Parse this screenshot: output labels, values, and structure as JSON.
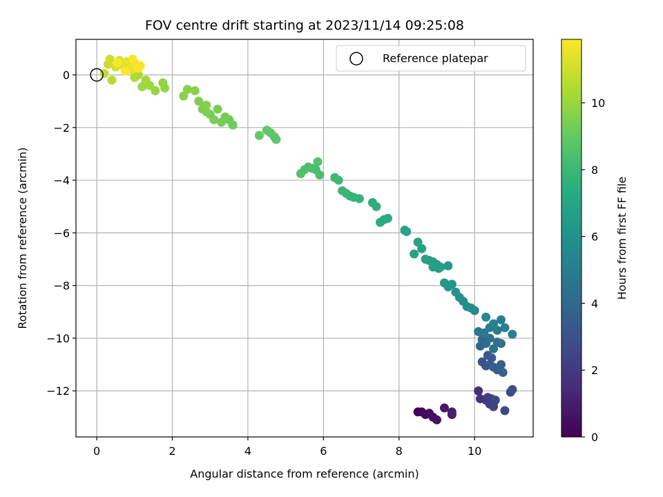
{
  "chart_data": {
    "type": "scatter",
    "title": "FOV centre drift starting at 2023/11/14 09:25:08",
    "xlabel": "Angular distance from reference (arcmin)",
    "ylabel": "Rotation from reference (arcmin)",
    "xlim": [
      -0.55,
      11.55
    ],
    "ylim": [
      -13.75,
      1.35
    ],
    "xticks": [
      0,
      2,
      4,
      6,
      8,
      10
    ],
    "yticks": [
      0,
      -2,
      -4,
      -6,
      -8,
      -10,
      -12
    ],
    "grid": true,
    "legend": {
      "placement": "top-right",
      "label": "Reference platepar"
    },
    "reference_point": {
      "x": 0,
      "y": 0
    },
    "colorbar": {
      "label": "Hours from first FF file",
      "min": 0,
      "max": 11.9,
      "ticks": [
        0,
        2,
        4,
        6,
        8,
        10
      ],
      "colormap": "viridis"
    },
    "points": [
      {
        "x": 8.5,
        "y": -12.8,
        "c": 0.1
      },
      {
        "x": 8.6,
        "y": -12.8,
        "c": 0.2
      },
      {
        "x": 8.7,
        "y": -12.9,
        "c": 0.3
      },
      {
        "x": 8.8,
        "y": -12.85,
        "c": 0.4
      },
      {
        "x": 8.9,
        "y": -13.0,
        "c": 0.5
      },
      {
        "x": 9.0,
        "y": -13.1,
        "c": 0.6
      },
      {
        "x": 9.2,
        "y": -12.65,
        "c": 0.8
      },
      {
        "x": 9.4,
        "y": -12.8,
        "c": 0.9
      },
      {
        "x": 9.4,
        "y": -12.9,
        "c": 1.0
      },
      {
        "x": 10.1,
        "y": -12.0,
        "c": 1.6
      },
      {
        "x": 10.15,
        "y": -12.3,
        "c": 1.7
      },
      {
        "x": 10.3,
        "y": -12.35,
        "c": 1.9
      },
      {
        "x": 10.35,
        "y": -12.25,
        "c": 2.0
      },
      {
        "x": 10.4,
        "y": -12.5,
        "c": 2.1
      },
      {
        "x": 10.45,
        "y": -12.3,
        "c": 2.2
      },
      {
        "x": 10.5,
        "y": -12.45,
        "c": 2.3
      },
      {
        "x": 10.5,
        "y": -12.6,
        "c": 2.4
      },
      {
        "x": 10.55,
        "y": -12.35,
        "c": 2.5
      },
      {
        "x": 10.8,
        "y": -12.75,
        "c": 2.6
      },
      {
        "x": 10.95,
        "y": -12.05,
        "c": 2.7
      },
      {
        "x": 11.0,
        "y": -11.95,
        "c": 2.8
      },
      {
        "x": 10.2,
        "y": -10.9,
        "c": 3.0
      },
      {
        "x": 10.3,
        "y": -11.05,
        "c": 3.1
      },
      {
        "x": 10.35,
        "y": -10.65,
        "c": 3.2
      },
      {
        "x": 10.4,
        "y": -11.0,
        "c": 3.3
      },
      {
        "x": 10.45,
        "y": -10.75,
        "c": 3.4
      },
      {
        "x": 10.5,
        "y": -11.1,
        "c": 3.5
      },
      {
        "x": 10.6,
        "y": -11.2,
        "c": 3.6
      },
      {
        "x": 10.7,
        "y": -11.0,
        "c": 3.7
      },
      {
        "x": 10.75,
        "y": -11.3,
        "c": 3.8
      },
      {
        "x": 10.15,
        "y": -10.3,
        "c": 4.0
      },
      {
        "x": 10.2,
        "y": -10.05,
        "c": 4.1
      },
      {
        "x": 10.3,
        "y": -10.2,
        "c": 4.2
      },
      {
        "x": 10.4,
        "y": -10.0,
        "c": 4.3
      },
      {
        "x": 10.5,
        "y": -10.4,
        "c": 4.4
      },
      {
        "x": 10.6,
        "y": -10.15,
        "c": 4.5
      },
      {
        "x": 10.7,
        "y": -10.2,
        "c": 4.6
      },
      {
        "x": 10.1,
        "y": -9.75,
        "c": 4.7
      },
      {
        "x": 10.25,
        "y": -9.8,
        "c": 4.8
      },
      {
        "x": 10.4,
        "y": -9.6,
        "c": 4.9
      },
      {
        "x": 10.6,
        "y": -9.7,
        "c": 5.0
      },
      {
        "x": 10.7,
        "y": -9.3,
        "c": 5.1
      },
      {
        "x": 10.8,
        "y": -9.6,
        "c": 5.2
      },
      {
        "x": 11.0,
        "y": -9.85,
        "c": 5.3
      },
      {
        "x": 10.5,
        "y": -9.45,
        "c": 5.4
      },
      {
        "x": 10.3,
        "y": -9.2,
        "c": 5.5
      },
      {
        "x": 10.0,
        "y": -8.95,
        "c": 5.6
      },
      {
        "x": 9.9,
        "y": -8.85,
        "c": 5.7
      },
      {
        "x": 9.8,
        "y": -8.8,
        "c": 5.8
      },
      {
        "x": 9.7,
        "y": -8.6,
        "c": 5.9
      },
      {
        "x": 9.6,
        "y": -8.45,
        "c": 6.0
      },
      {
        "x": 9.5,
        "y": -8.25,
        "c": 6.1
      },
      {
        "x": 9.4,
        "y": -7.95,
        "c": 6.2
      },
      {
        "x": 9.3,
        "y": -8.05,
        "c": 6.2
      },
      {
        "x": 9.2,
        "y": -7.9,
        "c": 6.3
      },
      {
        "x": 9.3,
        "y": -7.25,
        "c": 6.4
      },
      {
        "x": 9.1,
        "y": -7.3,
        "c": 6.5
      },
      {
        "x": 9.0,
        "y": -7.2,
        "c": 6.5
      },
      {
        "x": 8.9,
        "y": -7.1,
        "c": 6.6
      },
      {
        "x": 8.8,
        "y": -7.05,
        "c": 6.6
      },
      {
        "x": 8.9,
        "y": -7.3,
        "c": 6.7
      },
      {
        "x": 9.05,
        "y": -7.35,
        "c": 6.7
      },
      {
        "x": 8.7,
        "y": -7.0,
        "c": 6.8
      },
      {
        "x": 8.6,
        "y": -6.6,
        "c": 6.8
      },
      {
        "x": 8.5,
        "y": -6.35,
        "c": 6.9
      },
      {
        "x": 8.4,
        "y": -6.8,
        "c": 6.9
      },
      {
        "x": 8.2,
        "y": -5.95,
        "c": 7.0
      },
      {
        "x": 8.15,
        "y": -5.9,
        "c": 7.0
      },
      {
        "x": 7.7,
        "y": -5.45,
        "c": 7.3
      },
      {
        "x": 7.6,
        "y": -5.5,
        "c": 7.3
      },
      {
        "x": 7.5,
        "y": -5.6,
        "c": 7.4
      },
      {
        "x": 7.4,
        "y": -5.0,
        "c": 7.5
      },
      {
        "x": 7.3,
        "y": -4.85,
        "c": 7.5
      },
      {
        "x": 6.95,
        "y": -4.7,
        "c": 7.7
      },
      {
        "x": 6.8,
        "y": -4.65,
        "c": 7.8
      },
      {
        "x": 6.7,
        "y": -4.6,
        "c": 7.8
      },
      {
        "x": 6.6,
        "y": -4.5,
        "c": 7.9
      },
      {
        "x": 6.5,
        "y": -4.4,
        "c": 7.9
      },
      {
        "x": 6.4,
        "y": -4.0,
        "c": 8.0
      },
      {
        "x": 6.3,
        "y": -3.9,
        "c": 8.0
      },
      {
        "x": 5.9,
        "y": -3.8,
        "c": 8.3
      },
      {
        "x": 5.8,
        "y": -3.6,
        "c": 8.3
      },
      {
        "x": 5.7,
        "y": -3.55,
        "c": 8.4
      },
      {
        "x": 5.6,
        "y": -3.5,
        "c": 8.4
      },
      {
        "x": 5.5,
        "y": -3.6,
        "c": 8.5
      },
      {
        "x": 5.4,
        "y": -3.75,
        "c": 8.5
      },
      {
        "x": 5.85,
        "y": -3.3,
        "c": 8.6
      },
      {
        "x": 4.75,
        "y": -2.45,
        "c": 8.8
      },
      {
        "x": 4.7,
        "y": -2.35,
        "c": 8.8
      },
      {
        "x": 4.6,
        "y": -2.2,
        "c": 8.9
      },
      {
        "x": 4.5,
        "y": -2.1,
        "c": 8.9
      },
      {
        "x": 4.3,
        "y": -2.3,
        "c": 9.0
      },
      {
        "x": 3.6,
        "y": -1.9,
        "c": 9.2
      },
      {
        "x": 3.5,
        "y": -1.7,
        "c": 9.2
      },
      {
        "x": 3.4,
        "y": -1.6,
        "c": 9.3
      },
      {
        "x": 3.3,
        "y": -1.8,
        "c": 9.3
      },
      {
        "x": 3.2,
        "y": -1.3,
        "c": 9.4
      },
      {
        "x": 3.1,
        "y": -1.7,
        "c": 9.4
      },
      {
        "x": 3.0,
        "y": -1.5,
        "c": 9.4
      },
      {
        "x": 2.9,
        "y": -1.4,
        "c": 9.5
      },
      {
        "x": 2.8,
        "y": -1.3,
        "c": 9.5
      },
      {
        "x": 2.7,
        "y": -1.0,
        "c": 9.5
      },
      {
        "x": 2.9,
        "y": -1.15,
        "c": 9.6
      },
      {
        "x": 2.6,
        "y": -0.6,
        "c": 9.7
      },
      {
        "x": 2.4,
        "y": -0.55,
        "c": 9.7
      },
      {
        "x": 2.3,
        "y": -0.8,
        "c": 9.7
      },
      {
        "x": 1.8,
        "y": -0.5,
        "c": 9.9
      },
      {
        "x": 1.75,
        "y": -0.3,
        "c": 9.9
      },
      {
        "x": 1.55,
        "y": -0.6,
        "c": 10.0
      },
      {
        "x": 1.4,
        "y": -0.4,
        "c": 10.1
      },
      {
        "x": 1.2,
        "y": -0.45,
        "c": 10.1
      },
      {
        "x": 1.3,
        "y": -0.2,
        "c": 10.2
      },
      {
        "x": 1.1,
        "y": 0.0,
        "c": 10.3
      },
      {
        "x": 1.0,
        "y": -0.1,
        "c": 10.4
      },
      {
        "x": 0.4,
        "y": -0.2,
        "c": 10.6
      },
      {
        "x": 0.2,
        "y": 0.05,
        "c": 10.8
      },
      {
        "x": 0.3,
        "y": 0.4,
        "c": 10.9
      },
      {
        "x": 0.35,
        "y": 0.6,
        "c": 11.0
      },
      {
        "x": 0.5,
        "y": 0.3,
        "c": 11.1
      },
      {
        "x": 0.6,
        "y": 0.55,
        "c": 11.2
      },
      {
        "x": 0.7,
        "y": 0.35,
        "c": 11.3
      },
      {
        "x": 0.8,
        "y": 0.5,
        "c": 11.4
      },
      {
        "x": 0.9,
        "y": 0.2,
        "c": 11.5
      },
      {
        "x": 1.0,
        "y": 0.45,
        "c": 11.6
      },
      {
        "x": 1.15,
        "y": 0.35,
        "c": 11.7
      },
      {
        "x": 0.95,
        "y": 0.6,
        "c": 11.8
      },
      {
        "x": 0.75,
        "y": 0.15,
        "c": 11.85
      },
      {
        "x": 0.55,
        "y": 0.45,
        "c": 11.9
      },
      {
        "x": 1.1,
        "y": 0.25,
        "c": 11.9
      }
    ]
  }
}
